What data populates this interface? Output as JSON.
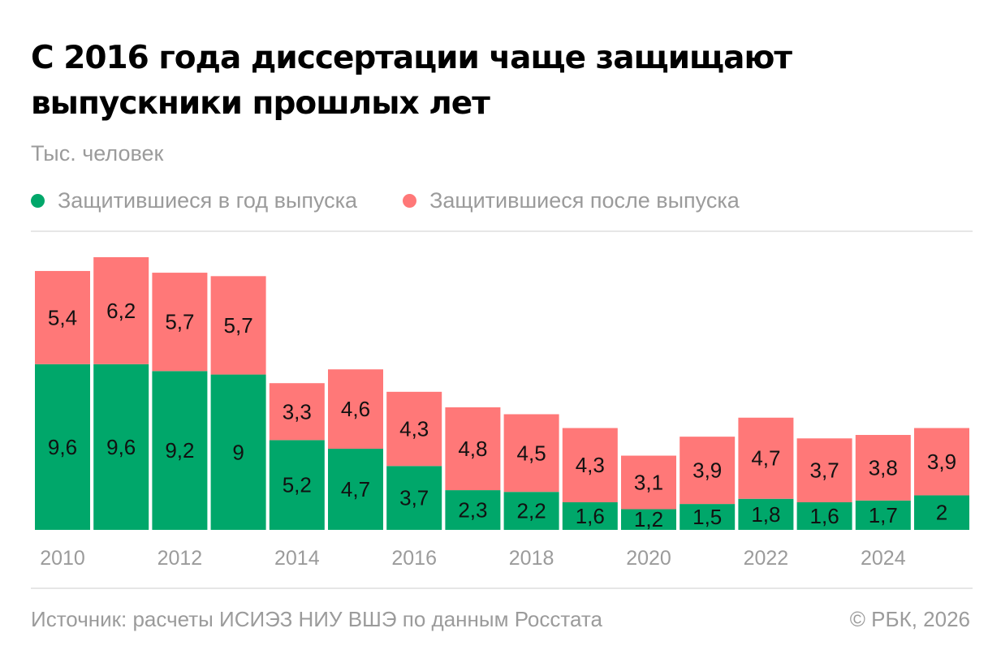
{
  "title": "С 2016 года диссертации чаще защищают выпускники прошлых лет",
  "subtitle": "Тыс. человек",
  "legend": [
    {
      "label": "Защитившиеся в год выпуска",
      "color": "#00a76a"
    },
    {
      "label": "Защитившиеся после выпуска",
      "color": "#ff7878"
    }
  ],
  "footer": {
    "source": "Источник: расчеты ИСИЭЗ НИУ ВШЭ по данным Росстата",
    "copyright": "© РБК, 2026"
  },
  "chart_data": {
    "type": "bar",
    "stacked": true,
    "title": "С 2016 года диссертации чаще защищают выпускники прошлых лет",
    "subtitle": "Тыс. человек",
    "xlabel": "",
    "ylabel": "Тыс. человек",
    "categories": [
      "2010",
      "2011",
      "2012",
      "2013",
      "2014",
      "2015",
      "2016",
      "2017",
      "2018",
      "2019",
      "2020",
      "2021",
      "2022",
      "2023",
      "2024",
      "2025"
    ],
    "tick_labels": [
      "2010",
      "",
      "2012",
      "",
      "2014",
      "",
      "2016",
      "",
      "2018",
      "",
      "2020",
      "",
      "2022",
      "",
      "2024",
      ""
    ],
    "series": [
      {
        "name": "Защитившиеся в год выпуска",
        "color": "#00a76a",
        "values": [
          9.6,
          9.6,
          9.2,
          9,
          5.2,
          4.7,
          3.7,
          2.3,
          2.2,
          1.6,
          1.2,
          1.5,
          1.8,
          1.6,
          1.7,
          2
        ],
        "labels": [
          "9,6",
          "9,6",
          "9,2",
          "9",
          "5,2",
          "4,7",
          "3,7",
          "2,3",
          "2,2",
          "1,6",
          "1,2",
          "1,5",
          "1,8",
          "1,6",
          "1,7",
          "2"
        ]
      },
      {
        "name": "Защитившиеся после выпуска",
        "color": "#ff7878",
        "values": [
          5.4,
          6.2,
          5.7,
          5.7,
          3.3,
          4.6,
          4.3,
          4.8,
          4.5,
          4.3,
          3.1,
          3.9,
          4.7,
          3.7,
          3.8,
          3.9
        ],
        "labels": [
          "5,4",
          "6,2",
          "5,7",
          "5,7",
          "3,3",
          "4,6",
          "4,3",
          "4,8",
          "4,5",
          "4,3",
          "3,1",
          "3,9",
          "4,7",
          "3,7",
          "3,8",
          "3,9"
        ]
      }
    ],
    "ylim": [
      0,
      16
    ],
    "grid": false,
    "legend_position": "top-left"
  }
}
